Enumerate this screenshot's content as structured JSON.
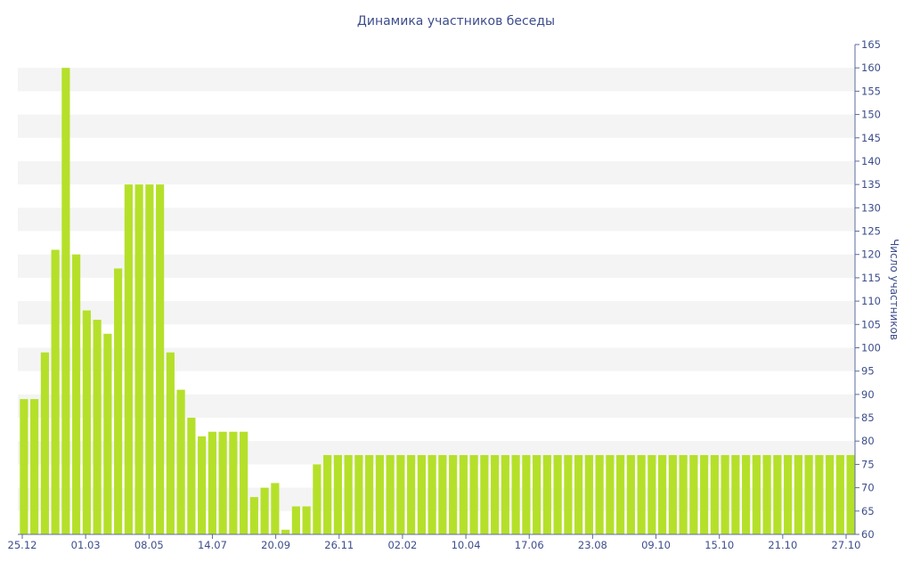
{
  "chart_data": {
    "type": "bar",
    "title": "Динамика участников беседы",
    "xlabel": "",
    "ylabel": "Число участников",
    "ylim": [
      60,
      165
    ],
    "ytick_step": 5,
    "x_tick_labels": [
      "25.12",
      "01.03",
      "08.05",
      "14.07",
      "20.09",
      "26.11",
      "02.02",
      "10.04",
      "17.06",
      "23.08",
      "09.10",
      "15.10",
      "21.10",
      "27.10"
    ],
    "bar_color": "#b5e02a",
    "band_color": "#f4f4f4",
    "axis_color": "#5a6aa0",
    "text_color": "#3d4d8c",
    "values": [
      89,
      89,
      99,
      121,
      160,
      120,
      108,
      106,
      103,
      117,
      135,
      135,
      135,
      135,
      99,
      91,
      85,
      81,
      82,
      82,
      82,
      82,
      68,
      70,
      71,
      61,
      66,
      66,
      75,
      77,
      77,
      77,
      77,
      77,
      77,
      77,
      77,
      77,
      77,
      77,
      77,
      77,
      77,
      77,
      77,
      77,
      77,
      77,
      77,
      77,
      77,
      77,
      77,
      77,
      77,
      77,
      77,
      77,
      77,
      77,
      77,
      77,
      77,
      77,
      77,
      77,
      77,
      77,
      77,
      77,
      77,
      77,
      77,
      77,
      77,
      77,
      77,
      77,
      77,
      77
    ]
  }
}
